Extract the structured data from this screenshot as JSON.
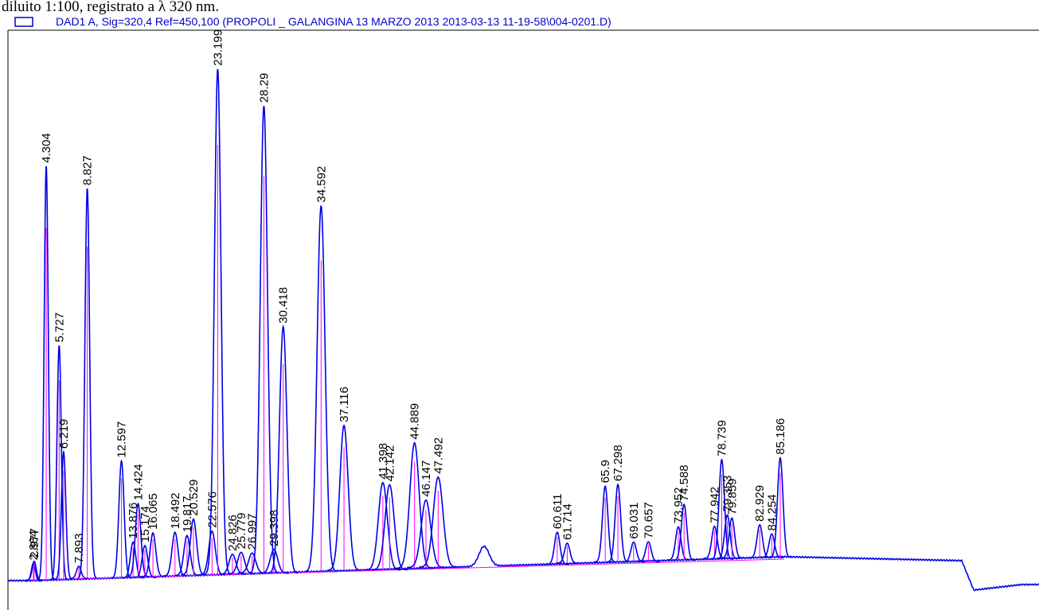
{
  "caption": "diluito 1:100, registrato a λ 320 nm.",
  "chart_data": {
    "type": "chromatogram",
    "title": "DAD1 A, Sig=320,4 Ref=450,100 (PROPOLI _ GALANGINA 13 MARZO 2013 2013-03-13 11-19-58\\004-0201.D)",
    "color": "#0000e6",
    "baseline_color": "#ff00ff",
    "xlim": [
      0,
      113.7
    ],
    "ylim": [
      0,
      100
    ],
    "x": [
      2.884,
      2.977,
      4.304,
      5.727,
      6.219,
      7.893,
      8.827,
      12.597,
      13.876,
      14.424,
      15.174,
      16.065,
      18.492,
      19.817,
      20.529,
      22.576,
      23.199,
      24.826,
      25.779,
      26.997,
      28.29,
      29.398,
      30.418,
      34.592,
      37.116,
      41.398,
      42.142,
      44.889,
      46.147,
      47.492,
      60.611,
      61.714,
      65.9,
      67.298,
      69.031,
      70.657,
      73.952,
      74.588,
      77.942,
      78.739,
      79.353,
      79.859,
      82.929,
      84.254,
      85.186
    ],
    "values": [
      3.2,
      3.4,
      74.8,
      42.4,
      23,
      2.2,
      70.5,
      21.2,
      6.5,
      13.2,
      5.8,
      7.9,
      7.9,
      7.2,
      10.1,
      7.9,
      91.4,
      3.6,
      3.9,
      3.6,
      84.5,
      4.3,
      44.6,
      66.2,
      26.2,
      15.8,
      15.4,
      22.7,
      12.2,
      16.3,
      5.8,
      3.6,
      13.7,
      14,
      3.6,
      3.6,
      6,
      10.1,
      5.8,
      18,
      7.9,
      7.2,
      6,
      4.3,
      18
    ]
  }
}
